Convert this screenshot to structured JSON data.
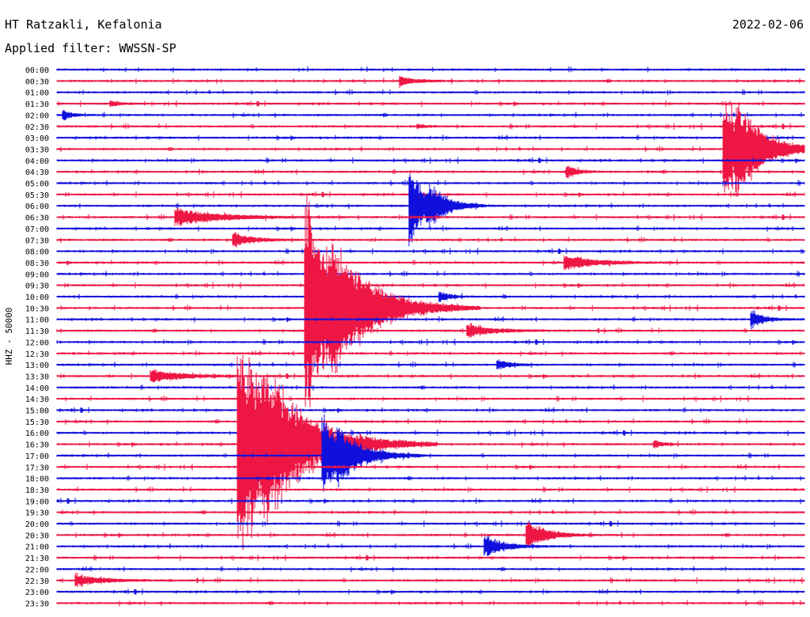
{
  "header": {
    "station": "HT Ratzakli, Kefalonia",
    "date": "2022-02-06",
    "filter": "Applied filter: WWSSN-SP"
  },
  "chart_data": {
    "type": "helicorder",
    "channel_label": "HHZ - 50000",
    "row_colors": [
      "#1010dd",
      "#ee1744"
    ],
    "x_minutes_per_row": 30,
    "rows": [
      {
        "time": "00:00",
        "color": "blue"
      },
      {
        "time": "00:30",
        "color": "red"
      },
      {
        "time": "01:00",
        "color": "blue"
      },
      {
        "time": "01:30",
        "color": "red"
      },
      {
        "time": "02:00",
        "color": "blue"
      },
      {
        "time": "02:30",
        "color": "red"
      },
      {
        "time": "03:00",
        "color": "blue"
      },
      {
        "time": "03:30",
        "color": "red"
      },
      {
        "time": "04:00",
        "color": "blue"
      },
      {
        "time": "04:30",
        "color": "red"
      },
      {
        "time": "05:00",
        "color": "blue"
      },
      {
        "time": "05:30",
        "color": "red"
      },
      {
        "time": "06:00",
        "color": "blue"
      },
      {
        "time": "06:30",
        "color": "red"
      },
      {
        "time": "07:00",
        "color": "blue"
      },
      {
        "time": "07:30",
        "color": "red"
      },
      {
        "time": "08:00",
        "color": "blue"
      },
      {
        "time": "08:30",
        "color": "red"
      },
      {
        "time": "09:00",
        "color": "blue"
      },
      {
        "time": "09:30",
        "color": "red"
      },
      {
        "time": "10:00",
        "color": "blue"
      },
      {
        "time": "10:30",
        "color": "red"
      },
      {
        "time": "11:00",
        "color": "blue"
      },
      {
        "time": "11:30",
        "color": "red"
      },
      {
        "time": "12:00",
        "color": "blue"
      },
      {
        "time": "12:30",
        "color": "red"
      },
      {
        "time": "13:00",
        "color": "blue"
      },
      {
        "time": "13:30",
        "color": "red"
      },
      {
        "time": "14:00",
        "color": "blue"
      },
      {
        "time": "14:30",
        "color": "red"
      },
      {
        "time": "15:00",
        "color": "blue"
      },
      {
        "time": "15:30",
        "color": "red"
      },
      {
        "time": "16:00",
        "color": "blue"
      },
      {
        "time": "16:30",
        "color": "red"
      },
      {
        "time": "17:00",
        "color": "blue"
      },
      {
        "time": "17:30",
        "color": "red"
      },
      {
        "time": "18:00",
        "color": "blue"
      },
      {
        "time": "18:30",
        "color": "red"
      },
      {
        "time": "19:00",
        "color": "blue"
      },
      {
        "time": "19:30",
        "color": "red"
      },
      {
        "time": "20:00",
        "color": "blue"
      },
      {
        "time": "20:30",
        "color": "red"
      },
      {
        "time": "21:00",
        "color": "blue"
      },
      {
        "time": "21:30",
        "color": "red"
      },
      {
        "time": "22:00",
        "color": "blue"
      },
      {
        "time": "22:30",
        "color": "red"
      },
      {
        "time": "23:00",
        "color": "blue"
      },
      {
        "time": "23:30",
        "color": "red"
      }
    ],
    "events": [
      {
        "row": "00:30",
        "minute": 13.8,
        "amplitude": 1.0,
        "duration_min": 1.2
      },
      {
        "row": "01:30",
        "minute": 2.2,
        "amplitude": 0.5,
        "duration_min": 0.8
      },
      {
        "row": "02:00",
        "minute": 0.3,
        "amplitude": 1.0,
        "duration_min": 0.6
      },
      {
        "row": "02:30",
        "minute": 14.5,
        "amplitude": 0.4,
        "duration_min": 0.7
      },
      {
        "row": "03:30",
        "minute": 26.8,
        "amplitude": 11.0,
        "duration_min": 2.5
      },
      {
        "row": "03:30",
        "minute": 27.3,
        "amplitude": 3.2,
        "duration_min": 2.0
      },
      {
        "row": "04:30",
        "minute": 20.5,
        "amplitude": 1.3,
        "duration_min": 0.8
      },
      {
        "row": "06:00",
        "minute": 14.2,
        "amplitude": 8.5,
        "duration_min": 1.5
      },
      {
        "row": "06:00",
        "minute": 15.0,
        "amplitude": 2.0,
        "duration_min": 1.5
      },
      {
        "row": "06:30",
        "minute": 4.8,
        "amplitude": 1.8,
        "duration_min": 3.5
      },
      {
        "row": "07:30",
        "minute": 7.1,
        "amplitude": 1.5,
        "duration_min": 1.5
      },
      {
        "row": "08:30",
        "minute": 20.4,
        "amplitude": 1.5,
        "duration_min": 2.5
      },
      {
        "row": "10:00",
        "minute": 15.4,
        "amplitude": 0.9,
        "duration_min": 0.8
      },
      {
        "row": "10:30",
        "minute": 10.0,
        "amplitude": 22.0,
        "duration_min": 3.5
      },
      {
        "row": "10:30",
        "minute": 11.0,
        "amplitude": 5.0,
        "duration_min": 2.5
      },
      {
        "row": "11:00",
        "minute": 27.9,
        "amplitude": 1.8,
        "duration_min": 1.0
      },
      {
        "row": "11:30",
        "minute": 16.5,
        "amplitude": 1.4,
        "duration_min": 2.0
      },
      {
        "row": "13:00",
        "minute": 17.7,
        "amplitude": 1.0,
        "duration_min": 1.0
      },
      {
        "row": "13:30",
        "minute": 3.8,
        "amplitude": 1.3,
        "duration_min": 2.5
      },
      {
        "row": "16:30",
        "minute": 7.3,
        "amplitude": 23.0,
        "duration_min": 4.0
      },
      {
        "row": "16:30",
        "minute": 8.3,
        "amplitude": 4.5,
        "duration_min": 3.0
      },
      {
        "row": "16:30",
        "minute": 24.0,
        "amplitude": 0.8,
        "duration_min": 0.6
      },
      {
        "row": "17:00",
        "minute": 10.7,
        "amplitude": 8.0,
        "duration_min": 2.0
      },
      {
        "row": "17:00",
        "minute": 11.3,
        "amplitude": 2.2,
        "duration_min": 2.0
      },
      {
        "row": "20:30",
        "minute": 18.9,
        "amplitude": 3.2,
        "duration_min": 1.5
      },
      {
        "row": "21:00",
        "minute": 17.2,
        "amplitude": 2.3,
        "duration_min": 1.5
      },
      {
        "row": "22:30",
        "minute": 0.8,
        "amplitude": 1.3,
        "duration_min": 2.0
      }
    ]
  }
}
